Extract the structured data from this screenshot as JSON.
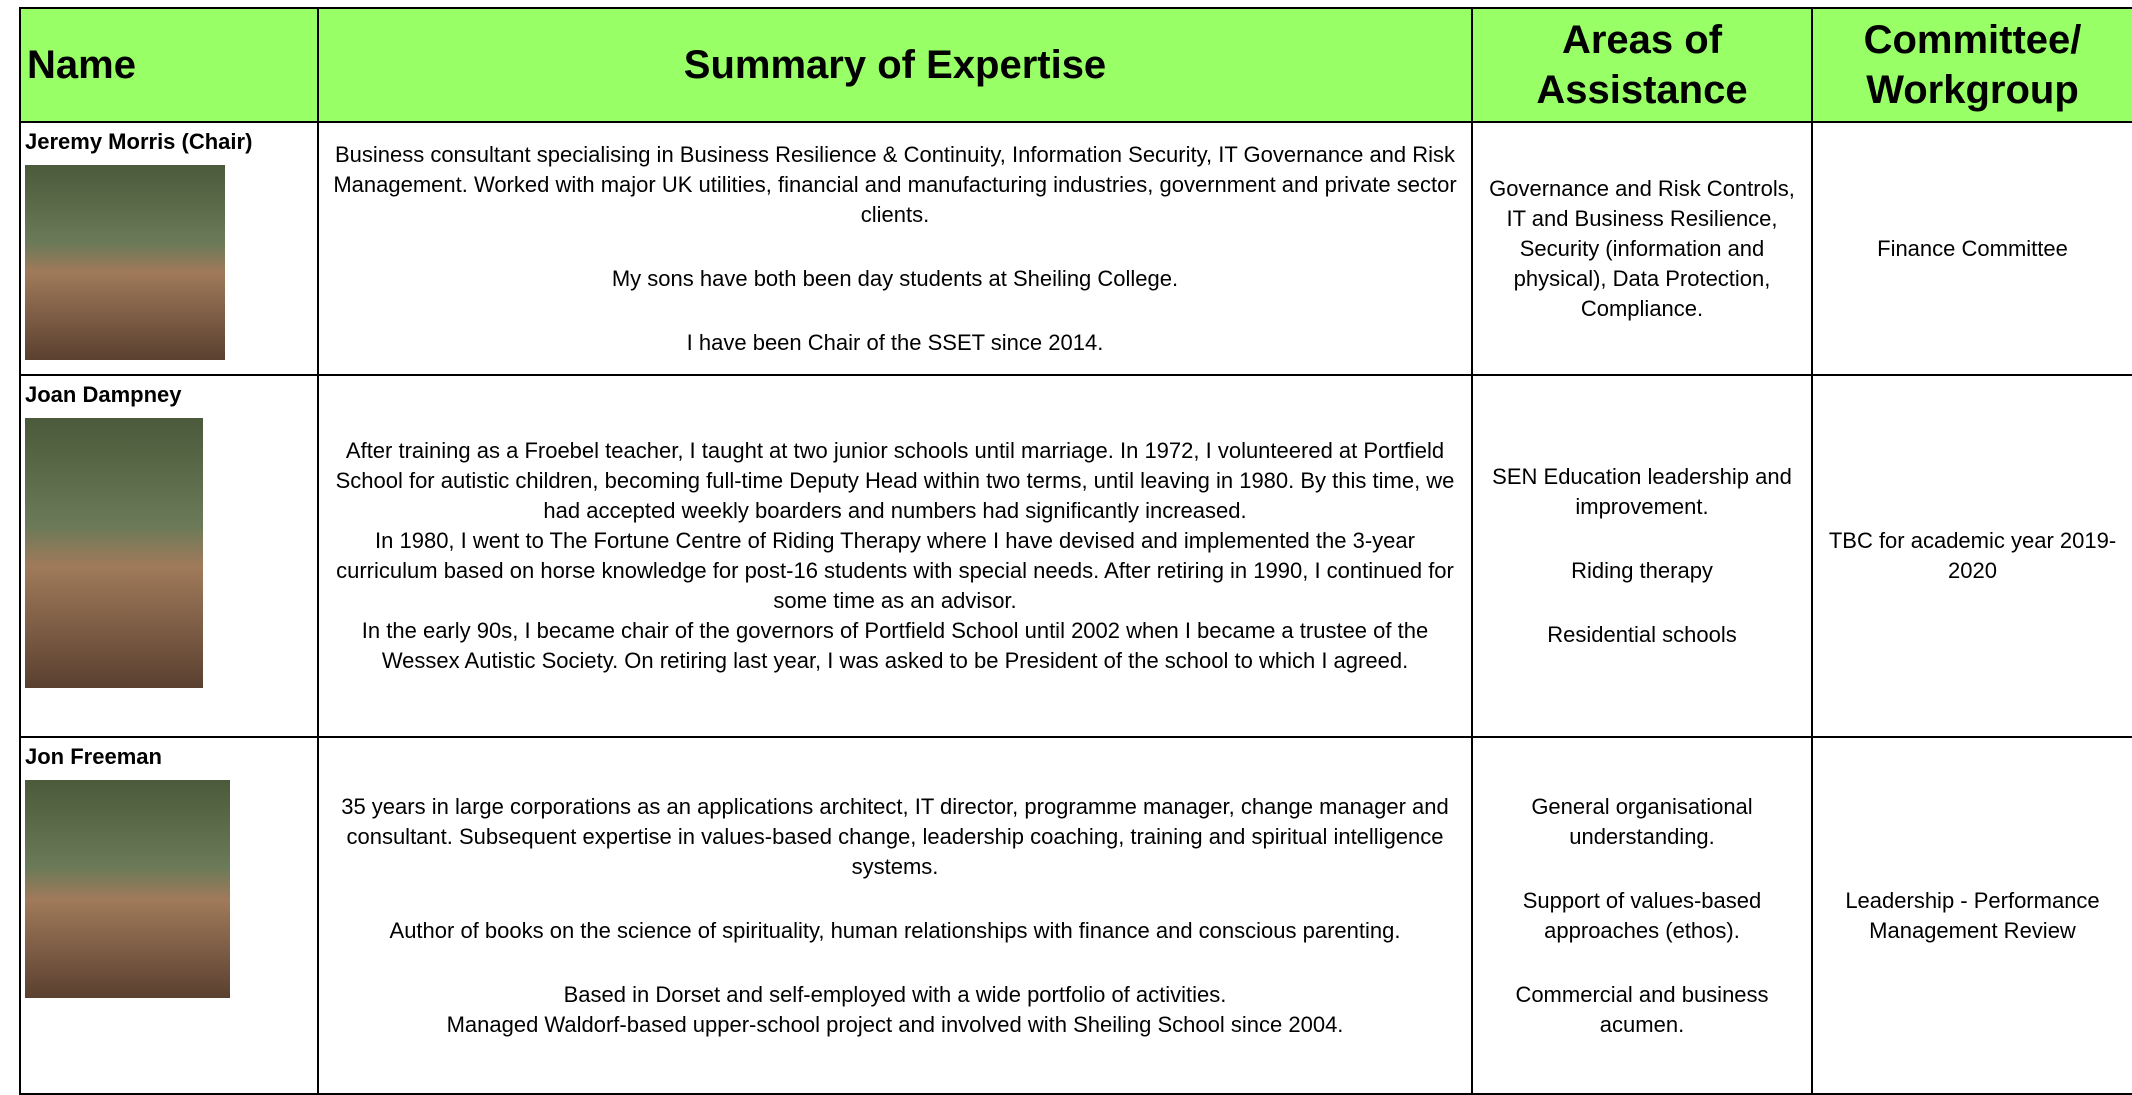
{
  "header": {
    "columns": [
      "Name",
      "Summary of Expertise",
      "Areas of Assistance",
      "Committee/ Workgroup"
    ]
  },
  "rows": [
    {
      "name": "Jeremy Morris (Chair)",
      "summary": [
        [
          "Business consultant specialising in Business Resilience & Continuity, Information Security, IT Governance and Risk Management. Worked with major UK utilities, financial and manufacturing industries, government and private sector clients."
        ],
        [
          "My sons have both been day students at Sheiling College."
        ],
        [
          "I have been Chair of the SSET since 2014."
        ]
      ],
      "areas": [
        [
          "Governance and Risk Controls, IT and Business Resilience, Security (information and physical), Data Protection, Compliance."
        ]
      ],
      "committee": "Finance Committee"
    },
    {
      "name": "Joan Dampney",
      "summary": [
        [
          "After training as a Froebel teacher, I taught at two junior schools until marriage.  In 1972, I volunteered at Portfield School for autistic children, becoming full-time Deputy Head within two terms, until leaving in 1980.  By this time, we had accepted weekly boarders and numbers had significantly increased.",
          "In 1980, I went to The Fortune Centre of Riding Therapy where I have devised and implemented the 3-year curriculum based on horse knowledge for post-16 students with special needs.  After retiring in 1990, I continued for some time as an advisor.",
          "In the early 90s, I became chair of the governors of Portfield School until 2002 when I became a trustee of the Wessex Autistic Society.  On retiring last year, I was asked to be President of the school to which I agreed."
        ]
      ],
      "areas": [
        [
          "SEN Education leadership and improvement."
        ],
        [
          "Riding therapy"
        ],
        [
          "Residential schools"
        ]
      ],
      "committee": "TBC for academic year 2019-2020"
    },
    {
      "name": "Jon Freeman",
      "summary": [
        [
          "35 years in large corporations as an applications architect, IT director, programme manager, change manager and consultant.  Subsequent expertise in values-based change, leadership coaching, training and spiritual intelligence systems."
        ],
        [
          "Author of books on the science of spirituality, human relationships with finance and conscious parenting."
        ],
        [
          "Based in Dorset and self-employed with a wide portfolio of activities.",
          "Managed Waldorf-based upper-school project and involved with Sheiling School since 2004."
        ]
      ],
      "areas": [
        [
          "General organisational understanding."
        ],
        [
          "Support of values-based approaches (ethos)."
        ],
        [
          "Commercial and business acumen."
        ]
      ],
      "committee": "Leadership - Performance Management Review"
    }
  ]
}
